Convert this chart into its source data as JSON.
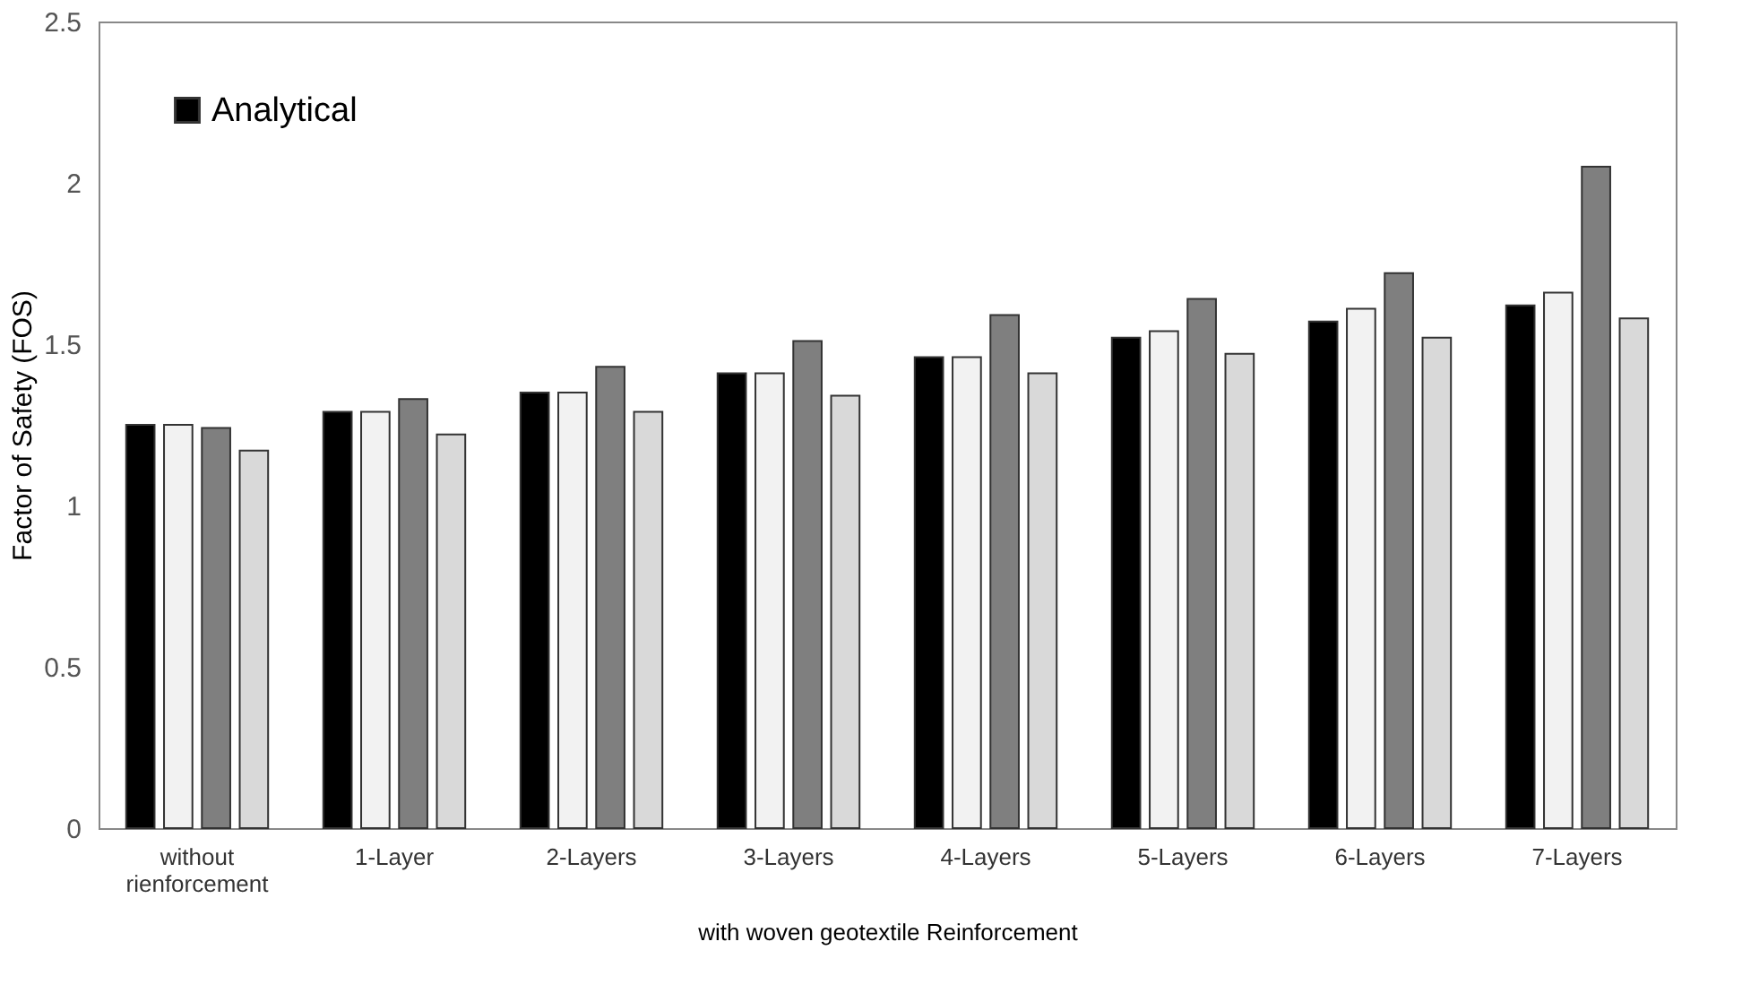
{
  "chart_data": {
    "type": "bar",
    "ylabel": "Factor of Safety (FOS)",
    "xlabel": "with woven geotextile Reinforcement",
    "categories": [
      "without rienforcement",
      "1-Layer",
      "2-Layers",
      "3-Layers",
      "4-Layers",
      "5-Layers",
      "6-Layers",
      "7-Layers"
    ],
    "series": [
      {
        "name": "Analytical",
        "color": "#000000",
        "values": [
          1.25,
          1.29,
          1.35,
          1.41,
          1.46,
          1.52,
          1.57,
          1.62
        ]
      },
      {
        "color": "#f2f2f2",
        "values": [
          1.25,
          1.29,
          1.35,
          1.41,
          1.46,
          1.54,
          1.61,
          1.66
        ]
      },
      {
        "color": "#7f7f7f",
        "values": [
          1.24,
          1.33,
          1.43,
          1.51,
          1.59,
          1.64,
          1.72,
          2.05
        ]
      },
      {
        "color": "#d9d9d9",
        "values": [
          1.17,
          1.22,
          1.29,
          1.34,
          1.41,
          1.47,
          1.52,
          1.58
        ]
      }
    ],
    "ylim": [
      0,
      2.5
    ],
    "yticks": [
      0,
      0.5,
      1,
      1.5,
      2,
      2.5
    ],
    "grid": false,
    "legend": "top left"
  }
}
